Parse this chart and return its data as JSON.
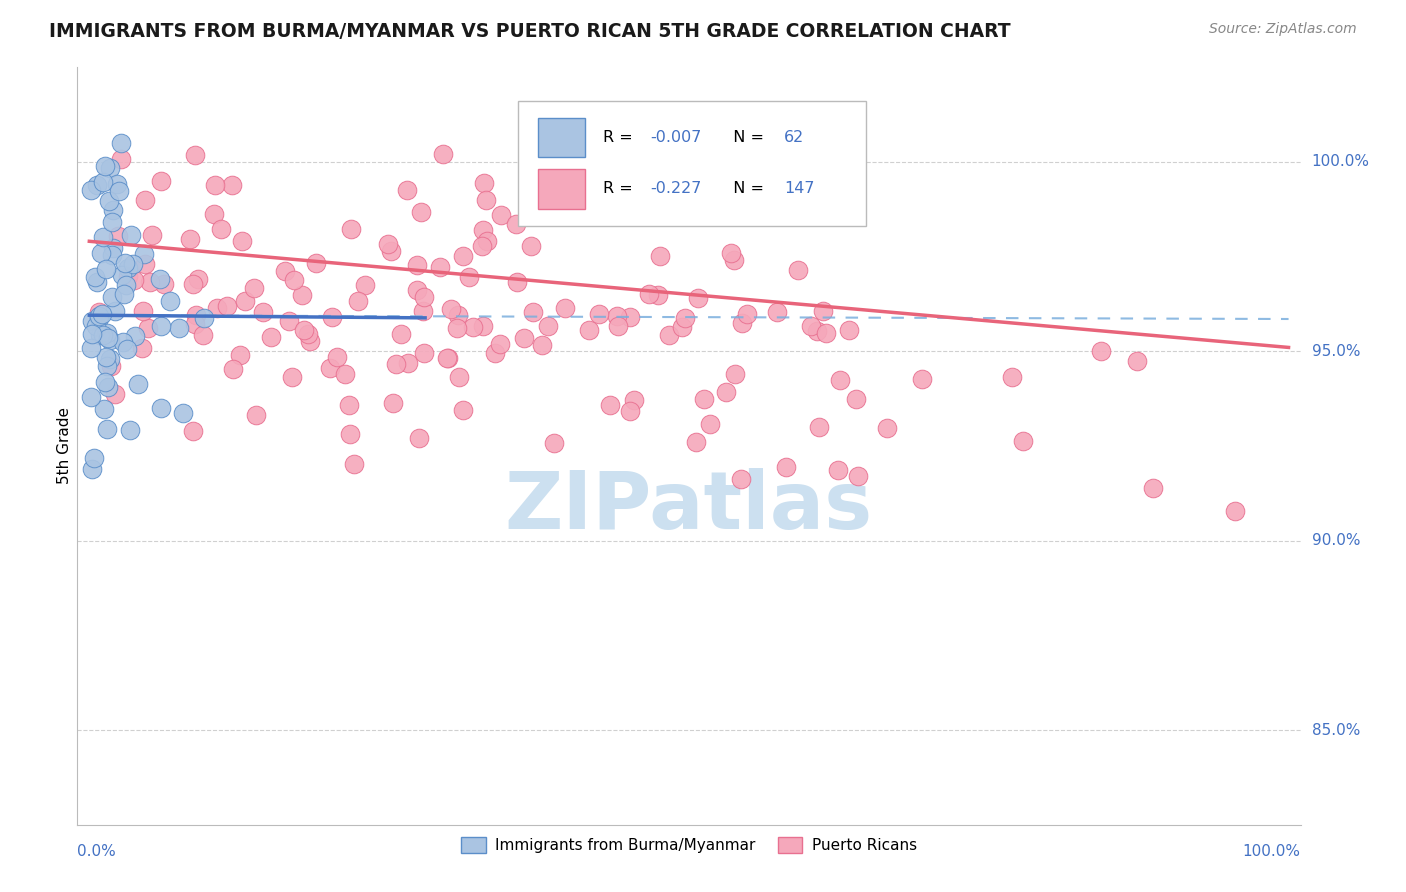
{
  "title": "IMMIGRANTS FROM BURMA/MYANMAR VS PUERTO RICAN 5TH GRADE CORRELATION CHART",
  "source": "Source: ZipAtlas.com",
  "ylabel": "5th Grade",
  "legend_blue_label": "Immigrants from Burma/Myanmar",
  "legend_pink_label": "Puerto Ricans",
  "r_blue": "-0.007",
  "n_blue": "62",
  "r_pink": "-0.227",
  "n_pink": "147",
  "y_ticks": [
    0.85,
    0.9,
    0.95,
    1.0
  ],
  "y_tick_labels": [
    "85.0%",
    "90.0%",
    "95.0%",
    "100.0%"
  ],
  "xlim": [
    0.0,
    1.0
  ],
  "ylim": [
    0.825,
    1.025
  ],
  "blue_color": "#aac4e2",
  "pink_color": "#f5a8bb",
  "blue_edge_color": "#5b8ec9",
  "pink_edge_color": "#e87090",
  "blue_line_color": "#4472c4",
  "blue_dash_color": "#7aaedd",
  "pink_line_color": "#e8647a",
  "title_color": "#1a1a1a",
  "source_color": "#888888",
  "tick_label_color": "#4472c4",
  "r_value_color": "#4472c4",
  "grid_color": "#d0d0d0",
  "background_color": "#ffffff",
  "watermark_color": "#cce0f0",
  "watermark_text": "ZIPatlas"
}
